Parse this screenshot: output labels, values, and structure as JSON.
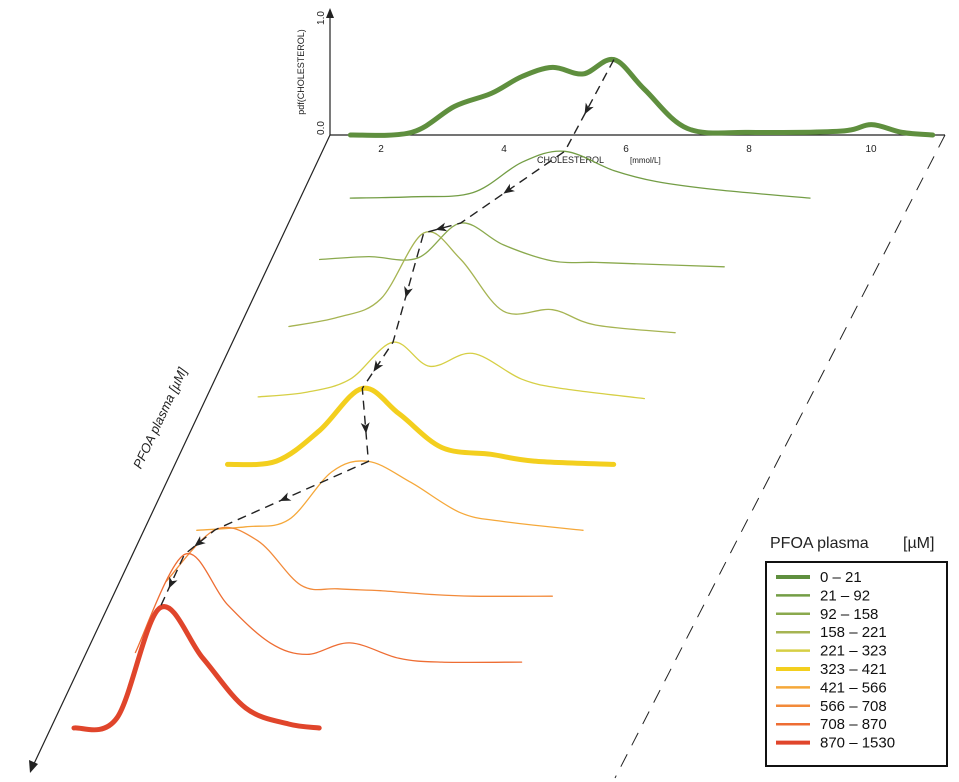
{
  "chart_data": {
    "type": "line",
    "title": "",
    "xlabel": "CHOLESTEROL",
    "xlabel_unit": "[mmol/L]",
    "ylabel": "pdf(CHOLESTEROL)",
    "depth_label": "PFOA plasma  [µM]",
    "x_ticks": [
      "2",
      "4",
      "6",
      "8",
      "10"
    ],
    "y_ticks": [
      "0.0",
      "1.0"
    ],
    "xlim": [
      1.5,
      11
    ],
    "ylim": [
      0,
      1
    ],
    "legend": {
      "title": "PFOA plasma",
      "unit": "[µM]",
      "position": "bottom-right"
    },
    "trend_line": "dashed line with arrows through the peak of each density",
    "series": [
      {
        "name": "0 – 21",
        "color": "#5f8f3e",
        "highlight": true,
        "x": [
          1.5,
          2.5,
          3.2,
          3.8,
          4.3,
          4.8,
          5.3,
          5.8,
          6.3,
          7.0,
          8.0,
          9.5,
          10.0,
          10.5,
          11.0
        ],
        "y": [
          0.0,
          0.02,
          0.22,
          0.32,
          0.45,
          0.52,
          0.47,
          0.58,
          0.35,
          0.05,
          0.02,
          0.03,
          0.08,
          0.02,
          0.0
        ]
      },
      {
        "name": "21 – 92",
        "color": "#739d45",
        "highlight": false,
        "x": [
          2.0,
          3.0,
          4.0,
          4.8,
          5.5,
          6.3,
          7.0,
          8.0,
          9.5
        ],
        "y": [
          0.02,
          0.03,
          0.06,
          0.28,
          0.36,
          0.22,
          0.14,
          0.08,
          0.02
        ]
      },
      {
        "name": "92 – 158",
        "color": "#8aa94d",
        "highlight": false,
        "x": [
          2.0,
          2.8,
          3.6,
          4.3,
          5.0,
          5.8,
          6.5,
          7.2,
          8.6
        ],
        "y": [
          0.05,
          0.07,
          0.06,
          0.3,
          0.15,
          0.04,
          0.03,
          0.02,
          0.0
        ]
      },
      {
        "name": "158 – 221",
        "color": "#a6b452",
        "highlight": false,
        "x": [
          2.0,
          2.8,
          3.5,
          4.2,
          4.8,
          5.5,
          6.3,
          7.0,
          8.3
        ],
        "y": [
          0.04,
          0.1,
          0.22,
          0.65,
          0.48,
          0.14,
          0.15,
          0.05,
          0.0
        ]
      },
      {
        "name": "221 – 323",
        "color": "#d6cf45",
        "highlight": false,
        "x": [
          2.0,
          2.8,
          3.5,
          4.2,
          4.8,
          5.5,
          6.3,
          7.0,
          8.3
        ],
        "y": [
          0.01,
          0.04,
          0.12,
          0.35,
          0.2,
          0.28,
          0.12,
          0.06,
          0.0
        ]
      },
      {
        "name": "323 – 421",
        "color": "#f3cf1e",
        "highlight": true,
        "x": [
          2.0,
          2.8,
          3.5,
          4.2,
          4.8,
          5.5,
          6.3,
          7.0,
          8.3
        ],
        "y": [
          0.0,
          0.02,
          0.2,
          0.45,
          0.3,
          0.1,
          0.06,
          0.02,
          0.0
        ]
      },
      {
        "name": "421 – 566",
        "color": "#f5a83a",
        "highlight": false,
        "x": [
          2.0,
          2.8,
          3.5,
          4.2,
          4.8,
          5.5,
          6.3,
          7.0,
          8.3
        ],
        "y": [
          0.0,
          0.02,
          0.06,
          0.33,
          0.39,
          0.27,
          0.1,
          0.05,
          0.0
        ]
      },
      {
        "name": "566 – 708",
        "color": "#f28a3a",
        "highlight": false,
        "x": [
          2.0,
          2.8,
          3.5,
          4.2,
          4.8,
          5.5,
          6.3,
          7.0,
          8.3
        ],
        "y": [
          0.08,
          0.36,
          0.3,
          0.06,
          0.04,
          0.03,
          0.01,
          0.0,
          0.0
        ]
      },
      {
        "name": "708 – 870",
        "color": "#ee6d33",
        "highlight": false,
        "x": [
          2.0,
          2.8,
          3.5,
          4.2,
          4.8,
          5.5,
          6.3,
          7.0,
          8.3
        ],
        "y": [
          0.05,
          0.56,
          0.3,
          0.1,
          0.04,
          0.1,
          0.02,
          0.0,
          0.0
        ]
      },
      {
        "name": "870 – 1530",
        "color": "#e0452b",
        "highlight": true,
        "x": [
          1.5,
          2.2,
          2.9,
          3.6,
          4.3,
          5.0,
          5.5
        ],
        "y": [
          0.0,
          0.05,
          0.6,
          0.35,
          0.1,
          0.02,
          0.0
        ]
      }
    ]
  }
}
